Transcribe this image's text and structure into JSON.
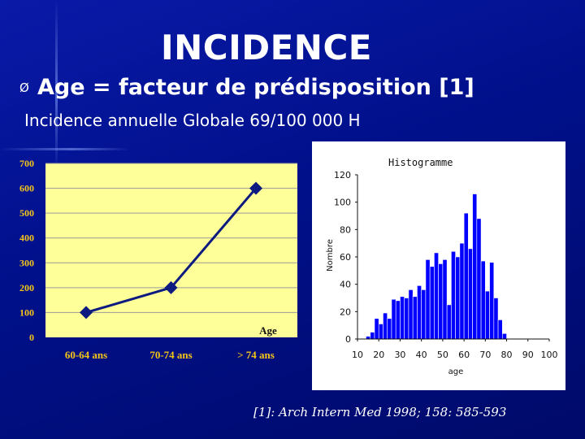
{
  "slide": {
    "title": "INCIDENCE",
    "bullet_icon": "arrow-bullet-icon",
    "bullet_glyph": "Ø",
    "bullet_text": "Age = facteur de prédisposition [1]",
    "subtitle": "Incidence annuelle Globale 69/100 000 H",
    "citation": "[1]: Arch Intern Med 1998; 158: 585-593"
  },
  "colors": {
    "background": "#00108a",
    "text": "#ffffff",
    "line_plot_bg": "#ffff99",
    "line_series": "#0d1a80",
    "axis_labels": "#f5c518",
    "histogram_bars": "#0000ff"
  },
  "chart_data": [
    {
      "type": "line",
      "title": "",
      "xlabel": "Age",
      "ylabel": "",
      "categories": [
        "60-64 ans",
        "70-74 ans",
        "> 74 ans"
      ],
      "series": [
        {
          "values": [
            100,
            200,
            600
          ]
        }
      ],
      "yticks": [
        "0",
        "100",
        "200",
        "300",
        "400",
        "500",
        "600",
        "700"
      ],
      "ylim": [
        0,
        700
      ],
      "grid": true
    },
    {
      "type": "bar",
      "title": "Histogramme",
      "xlabel": "age",
      "ylabel": "Nombre",
      "xlim": [
        10,
        100
      ],
      "ylim": [
        0,
        120
      ],
      "xticks": [
        "10",
        "20",
        "30",
        "40",
        "50",
        "60",
        "70",
        "80",
        "90",
        "100"
      ],
      "yticks": [
        "0",
        "20",
        "40",
        "60",
        "80",
        "100",
        "120"
      ],
      "bin_width": 2,
      "x": [
        15,
        17,
        19,
        21,
        23,
        25,
        27,
        29,
        31,
        33,
        35,
        37,
        39,
        41,
        43,
        45,
        47,
        49,
        51,
        53,
        55,
        57,
        59,
        61,
        63,
        65,
        67,
        69,
        71,
        73,
        75,
        77,
        79,
        81,
        83,
        85,
        87,
        89,
        91,
        93
      ],
      "values": [
        2,
        5,
        15,
        11,
        19,
        15,
        29,
        28,
        31,
        30,
        36,
        31,
        39,
        36,
        58,
        53,
        63,
        55,
        58,
        25,
        64,
        60,
        70,
        92,
        66,
        106,
        88,
        57,
        35,
        56,
        30,
        14,
        4,
        0,
        0,
        0,
        0,
        0,
        0,
        0
      ]
    }
  ]
}
